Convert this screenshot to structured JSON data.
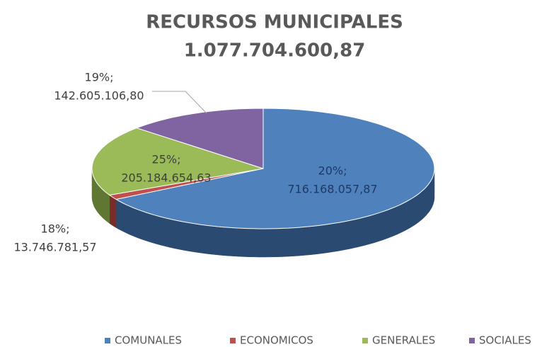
{
  "chart_data": {
    "type": "pie3d",
    "title": "RECURSOS MUNICIPALES",
    "subtitle": "1.077.704.600,87",
    "categories": [
      "COMUNALES",
      "ECONOMICOS",
      "GENERALES",
      "SOCIALES"
    ],
    "values": [
      716168057.87,
      13746781.57,
      205184654.63,
      142605106.8
    ],
    "value_labels": [
      "716.168.057,87",
      "13.746.781,57",
      "205.184.654,63",
      "142.605.106,80"
    ],
    "percent_labels": [
      "20%;",
      "18%;",
      "25%;",
      "19%;"
    ],
    "colors": [
      "#4f81bd",
      "#c0504d",
      "#9bbb59",
      "#8064a2"
    ],
    "side_colors": [
      "#2b4a72",
      "#7a2c2a",
      "#5f7733",
      "#4e3a68"
    ],
    "legend": "bottom"
  }
}
